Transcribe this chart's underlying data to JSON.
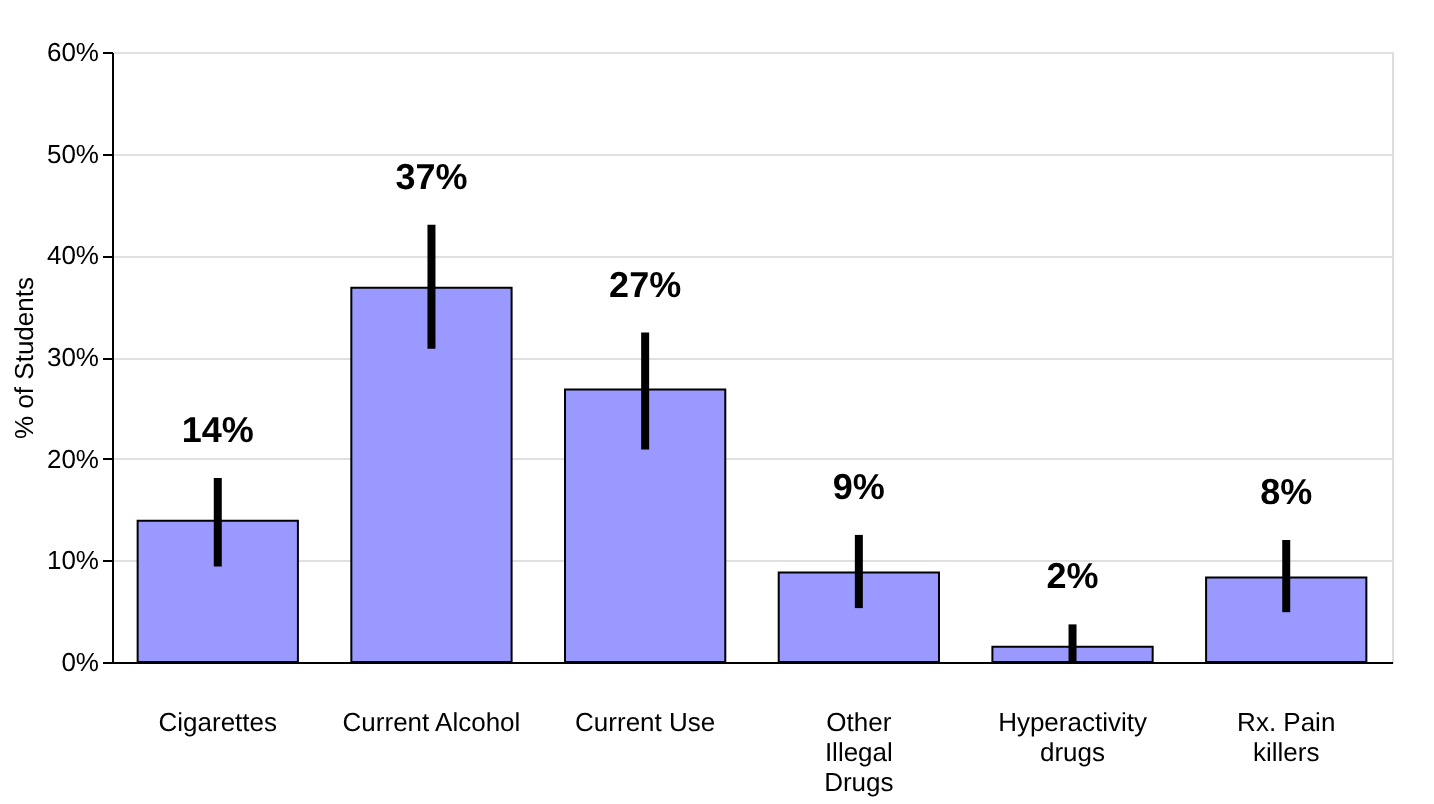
{
  "chart_data": {
    "type": "bar",
    "ylabel": "% of Students",
    "categories": [
      "Cigarettes",
      "Current Alcohol",
      "Current Use",
      "Other\nIllegal\nDrugs",
      "Hyperactivity\ndrugs",
      "Rx. Pain\nkillers"
    ],
    "values": [
      13.9,
      36.8,
      26.8,
      8.8,
      1.5,
      8.3
    ],
    "errors": [
      [
        9.4,
        18.1
      ],
      [
        30.8,
        43.0
      ],
      [
        20.9,
        32.4
      ],
      [
        5.3,
        12.5
      ],
      [
        0,
        3.7
      ],
      [
        4.9,
        12.0
      ]
    ],
    "value_labels": [
      "14%",
      "37%",
      "27%",
      "9%",
      "2%",
      "8%"
    ],
    "color": "#9999ff",
    "ylim": [
      0,
      60
    ],
    "yticks": [
      {
        "value": 0,
        "label": "0%"
      },
      {
        "value": 10,
        "label": "10%"
      },
      {
        "value": 20,
        "label": "20%"
      },
      {
        "value": 30,
        "label": "30%"
      },
      {
        "value": 40,
        "label": "40%"
      },
      {
        "value": 50,
        "label": "50%"
      },
      {
        "value": 60,
        "label": "60%"
      }
    ],
    "grid": "y"
  }
}
